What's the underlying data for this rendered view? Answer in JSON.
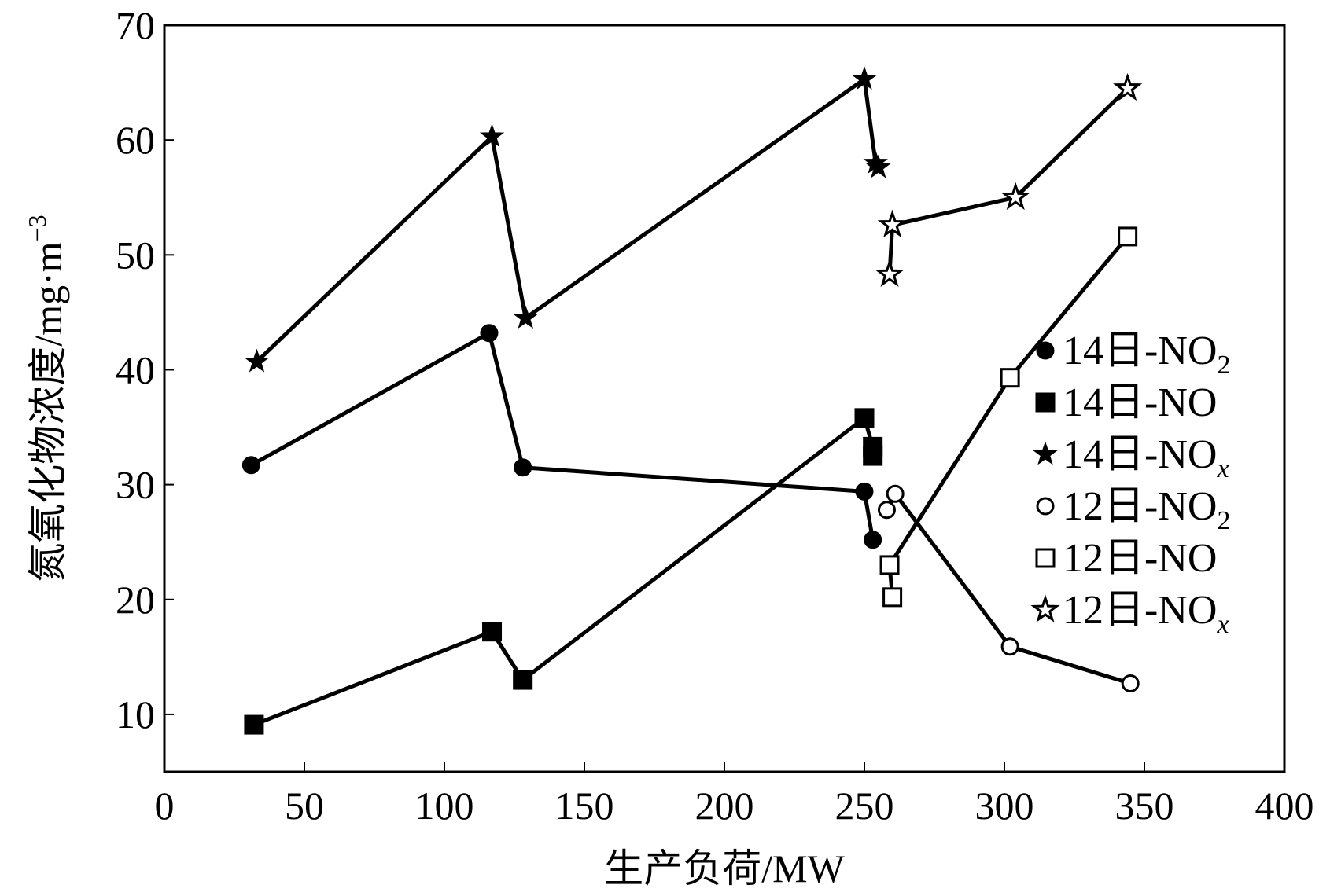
{
  "chart_data": {
    "type": "line",
    "xlabel": "生产负荷/MW",
    "ylabel": "氮氧化物浓度/mg·m",
    "ylabel_sup": "−3",
    "xlim": [
      0,
      400
    ],
    "ylim": [
      5,
      70
    ],
    "xticks": [
      0,
      50,
      100,
      150,
      200,
      250,
      300,
      350,
      400
    ],
    "yticks": [
      10,
      20,
      30,
      40,
      50,
      60,
      70
    ],
    "grid": false,
    "legend_position": "right",
    "series": [
      {
        "name": "14日-NO",
        "name_sub": "2",
        "name_sub_italic": false,
        "marker": "circle",
        "filled": true,
        "x": [
          31,
          116,
          128,
          250,
          253
        ],
        "y": [
          31.7,
          43.2,
          31.5,
          29.4,
          25.2
        ]
      },
      {
        "name": "14日-NO",
        "name_sub": "",
        "name_sub_italic": false,
        "marker": "square",
        "filled": true,
        "x": [
          32,
          117,
          128,
          250,
          253,
          253
        ],
        "y": [
          9.1,
          17.2,
          13.0,
          35.8,
          33.3,
          32.5
        ]
      },
      {
        "name": "14日-NO",
        "name_sub": "x",
        "name_sub_italic": true,
        "marker": "star",
        "filled": true,
        "x": [
          33,
          117,
          129,
          250,
          254,
          255
        ],
        "y": [
          40.7,
          60.3,
          44.5,
          65.3,
          58.0,
          57.6
        ]
      },
      {
        "name": "12日-NO",
        "name_sub": "2",
        "name_sub_italic": false,
        "marker": "circle",
        "filled": false,
        "x": [
          258,
          261,
          302,
          345
        ],
        "y": [
          27.8,
          29.2,
          15.9,
          12.7
        ]
      },
      {
        "name": "12日-NO",
        "name_sub": "",
        "name_sub_italic": false,
        "marker": "square",
        "filled": false,
        "x": [
          260,
          259,
          302,
          344
        ],
        "y": [
          20.2,
          23.0,
          39.3,
          51.6
        ]
      },
      {
        "name": "12日-NO",
        "name_sub": "x",
        "name_sub_italic": true,
        "marker": "star",
        "filled": false,
        "x": [
          259,
          260,
          304,
          344
        ],
        "y": [
          48.3,
          52.6,
          55.0,
          64.5
        ]
      }
    ]
  }
}
